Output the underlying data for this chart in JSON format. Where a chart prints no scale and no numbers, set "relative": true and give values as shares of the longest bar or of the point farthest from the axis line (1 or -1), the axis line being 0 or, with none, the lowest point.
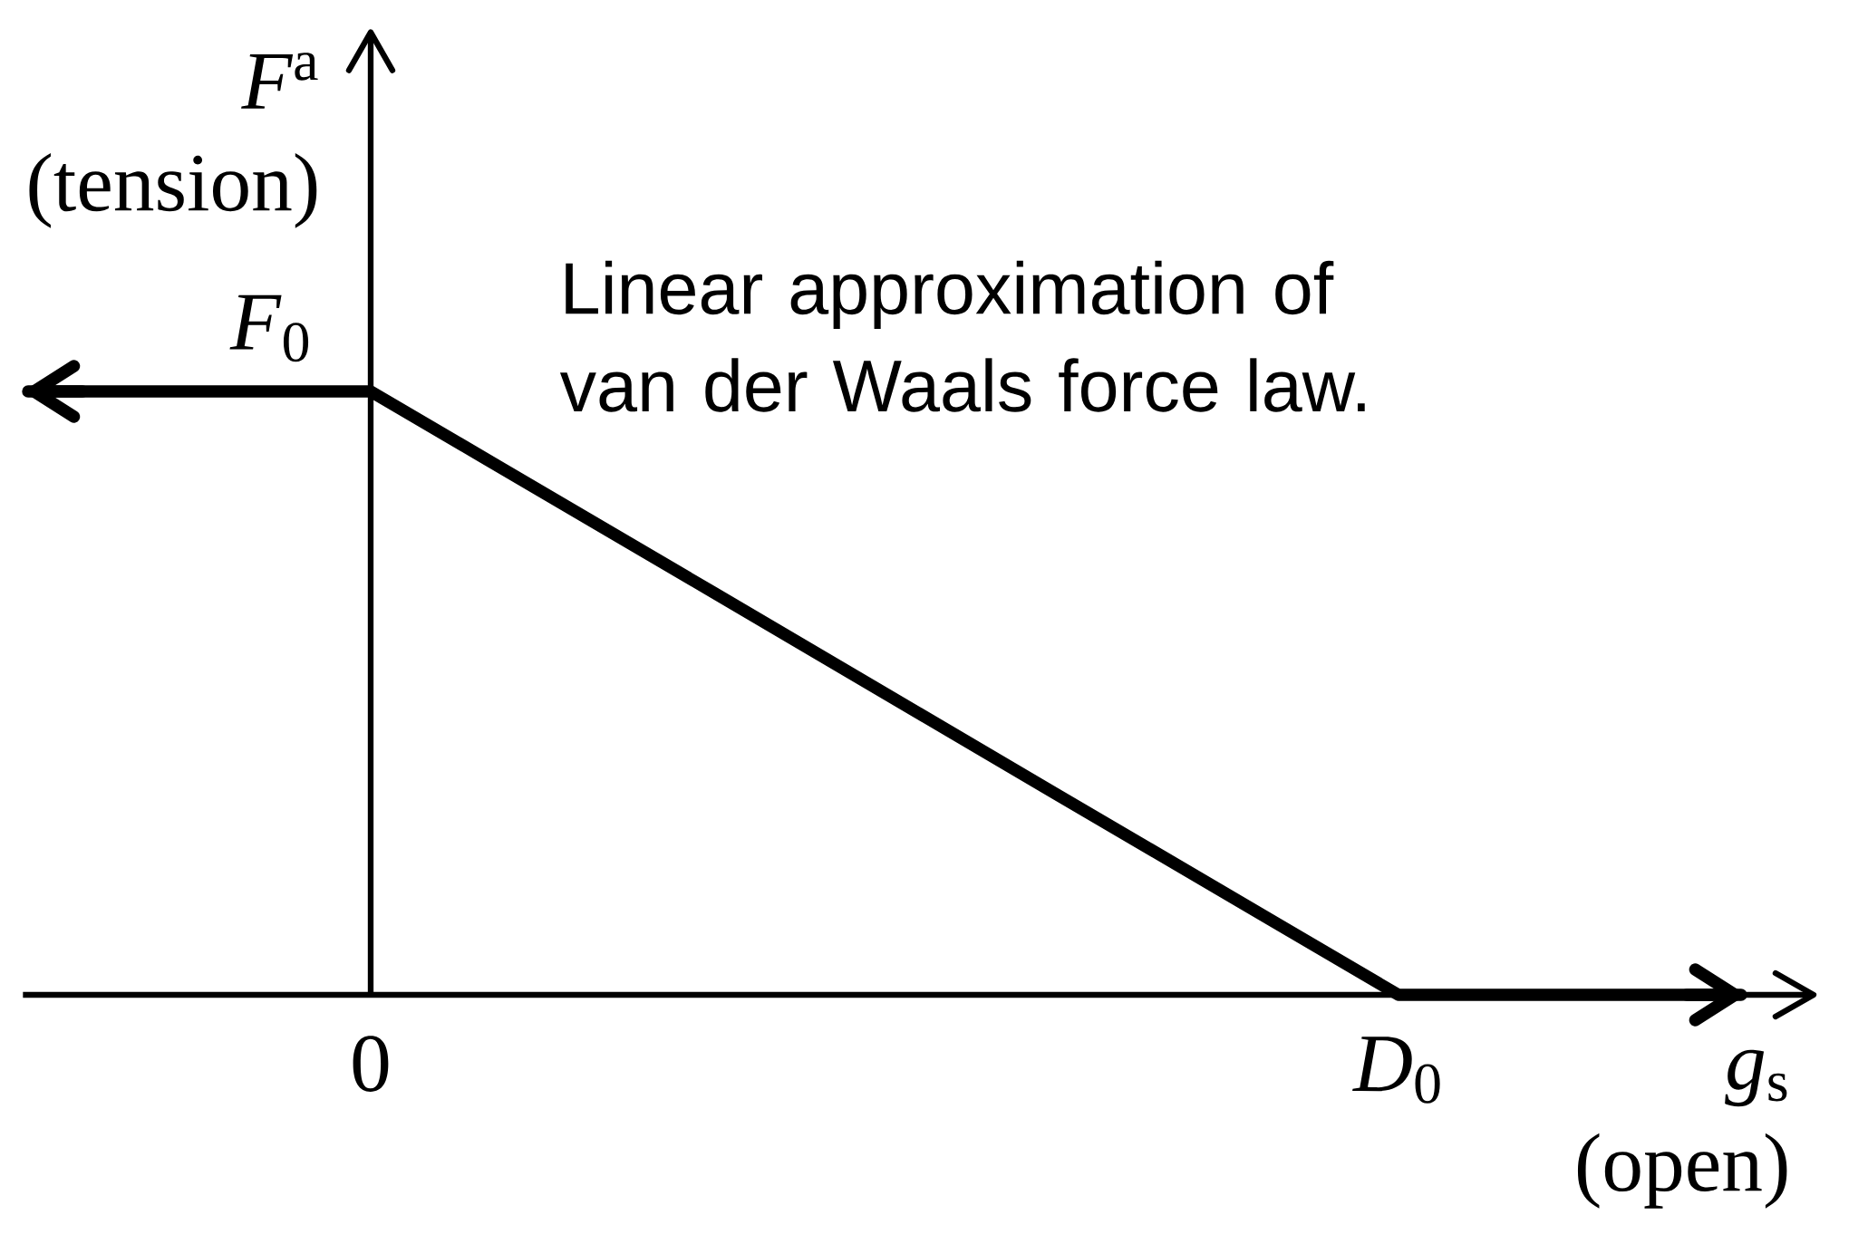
{
  "chart_data": {
    "type": "line",
    "relative": true,
    "categories": [
      null,
      "0",
      null,
      null,
      "*D*$_{0}$",
      null
    ],
    "values": [
      1,
      1,
      0.667,
      0.333,
      0,
      0
    ],
    "color": "#000000",
    "xlabel": "*g*$_{s}$ (open)",
    "ylabel": "*F*$^{a}$ (tension)",
    "annotations": [
      {
        "text": "*F*$_{0}$",
        "x": "0",
        "y": 1
      },
      "Linear approximation of van der Waals force law."
    ]
  }
}
